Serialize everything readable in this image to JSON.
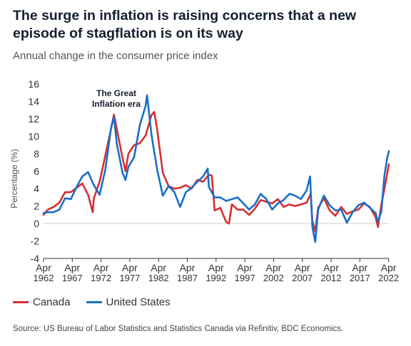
{
  "header": {
    "title": "The surge in inflation is raising concerns that a new episode of stagflation is on its way",
    "subtitle": "Annual change in the consumer price index"
  },
  "legend": [
    {
      "label": "Canada",
      "color": "#d62f2f"
    },
    {
      "label": "United States",
      "color": "#1a6ec9"
    }
  ],
  "annotation": {
    "line1": "The Great",
    "line2": "Inflation era"
  },
  "source": "Source: US Bureau of Labor Statistics and Statistics Canada via Refinitiv, BDC Economics.",
  "chart_data": {
    "type": "line",
    "ylabel": "Percentage (%)",
    "xlabel": "",
    "ylim": [
      -4,
      16
    ],
    "yticks": [
      -4,
      -2,
      0,
      2,
      4,
      6,
      8,
      10,
      12,
      14,
      16
    ],
    "xlim": [
      1962.25,
      2022.3
    ],
    "xticks": [
      {
        "x": 1962.25,
        "line1": "Apr",
        "line2": "1962"
      },
      {
        "x": 1967.25,
        "line1": "Apr",
        "line2": "1967"
      },
      {
        "x": 1972.25,
        "line1": "Apr",
        "line2": "1972"
      },
      {
        "x": 1977.25,
        "line1": "Apr",
        "line2": "1977"
      },
      {
        "x": 1982.25,
        "line1": "Apr",
        "line2": "1982"
      },
      {
        "x": 1987.25,
        "line1": "Apr",
        "line2": "1987"
      },
      {
        "x": 1992.25,
        "line1": "Apr",
        "line2": "1992"
      },
      {
        "x": 1997.25,
        "line1": "Apr",
        "line2": "1997"
      },
      {
        "x": 2002.25,
        "line1": "Apr",
        "line2": "2002"
      },
      {
        "x": 2007.25,
        "line1": "Apr",
        "line2": "2007"
      },
      {
        "x": 2012.25,
        "line1": "Apr",
        "line2": "2012"
      },
      {
        "x": 2017.25,
        "line1": "Apr",
        "line2": "2017"
      },
      {
        "x": 2022.25,
        "line1": "Apr",
        "line2": "2022"
      }
    ],
    "series": [
      {
        "name": "Canada",
        "color": "#d62f2f",
        "x": [
          1962.25,
          1963,
          1964,
          1965,
          1966,
          1967,
          1968,
          1969,
          1970,
          1970.8,
          1971,
          1972,
          1973,
          1974,
          1974.5,
          1975,
          1976,
          1976.5,
          1977,
          1978,
          1979,
          1980,
          1981,
          1981.5,
          1982,
          1983,
          1984,
          1985,
          1986,
          1987,
          1988,
          1989,
          1990,
          1991,
          1991.5,
          1992,
          1993,
          1994,
          1994.5,
          1995,
          1996,
          1997,
          1998,
          1999,
          2000,
          2001,
          2002,
          2003,
          2004,
          2005,
          2006,
          2007,
          2008,
          2008.7,
          2009,
          2009.5,
          2010,
          2011,
          2012,
          2013,
          2014,
          2015,
          2016,
          2017,
          2018,
          2019,
          2020,
          2020.4,
          2021,
          2021.5,
          2022,
          2022.3
        ],
        "values": [
          1.0,
          1.6,
          1.9,
          2.4,
          3.6,
          3.6,
          4.1,
          4.6,
          3.3,
          1.3,
          2.9,
          4.8,
          7.8,
          10.9,
          12.5,
          10.8,
          7.5,
          6.0,
          8.0,
          9.0,
          9.2,
          10.1,
          12.4,
          12.8,
          10.8,
          5.8,
          4.3,
          4.0,
          4.1,
          4.4,
          4.0,
          5.0,
          4.8,
          5.6,
          5.5,
          1.5,
          1.8,
          0.2,
          0.0,
          2.2,
          1.6,
          1.6,
          1.0,
          1.7,
          2.7,
          2.5,
          2.3,
          2.8,
          1.9,
          2.2,
          2.0,
          2.2,
          2.4,
          3.4,
          0.3,
          -0.9,
          1.8,
          2.9,
          1.5,
          0.9,
          1.9,
          1.1,
          1.4,
          1.6,
          2.3,
          1.9,
          0.7,
          -0.4,
          2.2,
          3.9,
          5.7,
          6.8
        ]
      },
      {
        "name": "United States",
        "color": "#1a6ec9",
        "x": [
          1962.25,
          1963,
          1964,
          1965,
          1966,
          1967,
          1968,
          1969,
          1970,
          1971,
          1972,
          1973,
          1974,
          1974.5,
          1975,
          1976,
          1976.5,
          1977,
          1978,
          1979,
          1980,
          1980.25,
          1981,
          1982,
          1983,
          1984,
          1985,
          1986,
          1987,
          1988,
          1989,
          1990,
          1990.8,
          1991,
          1992,
          1993,
          1994,
          1995,
          1996,
          1997,
          1998,
          1999,
          2000,
          2001,
          2002,
          2003,
          2004,
          2005,
          2006,
          2007,
          2008,
          2008.6,
          2009,
          2009.5,
          2010,
          2011,
          2012,
          2013,
          2014,
          2015,
          2016,
          2017,
          2018,
          2019,
          2020,
          2020.4,
          2021,
          2021.5,
          2022,
          2022.3
        ],
        "values": [
          1.2,
          1.3,
          1.3,
          1.6,
          2.9,
          2.8,
          4.2,
          5.4,
          5.9,
          4.4,
          3.3,
          6.2,
          11.0,
          12.2,
          9.1,
          5.8,
          5.0,
          6.5,
          7.6,
          11.3,
          13.5,
          14.7,
          10.3,
          6.2,
          3.2,
          4.3,
          3.6,
          1.9,
          3.6,
          4.1,
          4.8,
          5.4,
          6.3,
          4.2,
          3.0,
          3.0,
          2.6,
          2.8,
          3.0,
          2.3,
          1.6,
          2.2,
          3.4,
          2.8,
          1.6,
          2.3,
          2.7,
          3.4,
          3.2,
          2.8,
          3.8,
          5.4,
          -0.4,
          -2.1,
          1.6,
          3.2,
          2.1,
          1.5,
          1.6,
          0.1,
          1.3,
          2.1,
          2.4,
          1.8,
          1.2,
          0.2,
          1.4,
          5.4,
          7.5,
          8.3
        ]
      }
    ],
    "grid": false,
    "legend_position": "bottom-left"
  }
}
